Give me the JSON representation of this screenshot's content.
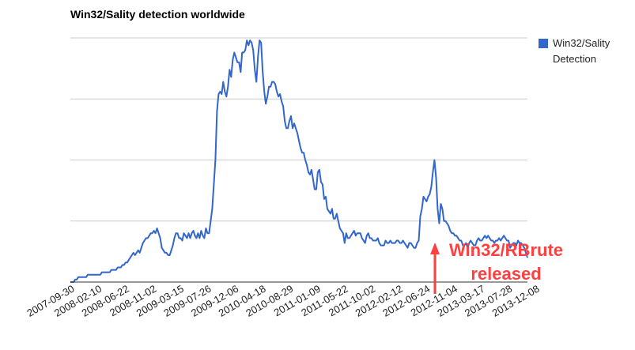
{
  "chart_data": {
    "type": "line",
    "title": "Win32/Sality detection worldwide",
    "xlabel": "",
    "ylabel": "",
    "x_tick_labels": [
      "2007-09-30",
      "2008-02-10",
      "2008-06-22",
      "2008-11-02",
      "2009-03-15",
      "2009-07-26",
      "2009-12-06",
      "2010-04-18",
      "2010-08-29",
      "2011-01-09",
      "2011-05-22",
      "2011-10-02",
      "2012-02-12",
      "2012-06-24",
      "2012-11-04",
      "2013-03-17",
      "2013-07-28",
      "2013-12-08"
    ],
    "y_axis": {
      "gridlines": 4,
      "tick_labels_shown": false,
      "ylim": [
        0,
        100
      ]
    },
    "grid": true,
    "legend": {
      "position": "right"
    },
    "series": [
      {
        "name": "Win32/Sality Detection",
        "color": "#3366cc",
        "values": [
          0,
          0,
          0,
          1,
          1,
          2,
          2,
          2,
          2,
          2,
          2,
          3,
          3,
          3,
          3,
          3,
          3,
          3,
          3,
          3,
          4,
          4,
          4,
          4,
          4,
          4,
          5,
          5,
          5,
          5,
          6,
          6,
          6,
          7,
          7,
          8,
          8,
          9,
          10,
          11,
          12,
          11,
          12,
          13,
          12,
          14,
          16,
          17,
          18,
          18,
          19,
          20,
          20,
          21,
          20,
          22,
          20,
          18,
          14,
          13,
          12,
          12,
          11,
          11,
          13,
          15,
          18,
          20,
          20,
          18,
          18,
          17,
          20,
          19,
          18,
          20,
          18,
          20,
          21,
          19,
          18,
          20,
          18,
          21,
          19,
          18,
          22,
          20,
          20,
          25,
          30,
          40,
          50,
          70,
          77,
          78,
          77,
          82,
          78,
          76,
          80,
          87,
          84,
          91,
          94,
          92,
          90,
          90,
          86,
          94,
          94,
          95,
          99,
          97,
          99,
          98,
          95,
          87,
          82,
          92,
          99,
          98,
          86,
          78,
          73,
          76,
          80,
          80,
          82,
          82,
          81,
          78,
          76,
          77,
          74,
          72,
          66,
          63,
          63,
          66,
          68,
          63,
          65,
          63,
          61,
          58,
          55,
          53,
          53,
          50,
          48,
          45,
          44,
          46,
          42,
          38,
          38,
          45,
          46,
          41,
          40,
          34,
          35,
          30,
          29,
          28,
          30,
          26,
          26,
          28,
          25,
          22,
          21,
          20,
          16,
          20,
          18,
          18,
          19,
          20,
          21,
          19,
          20,
          20,
          20,
          18,
          17,
          16,
          19,
          20,
          18,
          18,
          17,
          17,
          17,
          18,
          16,
          15,
          15,
          15,
          17,
          16,
          16,
          17,
          16,
          16,
          16,
          17,
          17,
          16,
          16,
          17,
          16,
          15,
          14,
          16,
          16,
          15,
          14,
          14,
          16,
          17,
          27,
          30,
          35,
          34,
          33,
          35,
          36,
          39,
          45,
          50,
          43,
          30,
          24,
          32,
          30,
          25,
          25,
          24,
          23,
          21,
          20,
          20,
          19,
          19,
          18,
          17,
          17,
          15,
          15,
          16,
          14,
          16,
          17,
          16,
          15,
          15,
          17,
          18,
          17,
          17,
          18,
          19,
          18,
          19,
          18,
          17,
          17,
          16,
          17,
          17,
          18,
          17,
          18,
          19,
          18,
          17,
          17,
          14,
          15,
          16,
          16,
          15,
          17,
          16,
          16,
          15,
          14,
          12,
          10
        ]
      }
    ],
    "annotations": [
      {
        "text_lines": [
          "Win32/RBrute",
          "released"
        ],
        "color": "#ff4040",
        "x_tick_ref": "2012-11-04",
        "arrow": "up"
      }
    ]
  }
}
